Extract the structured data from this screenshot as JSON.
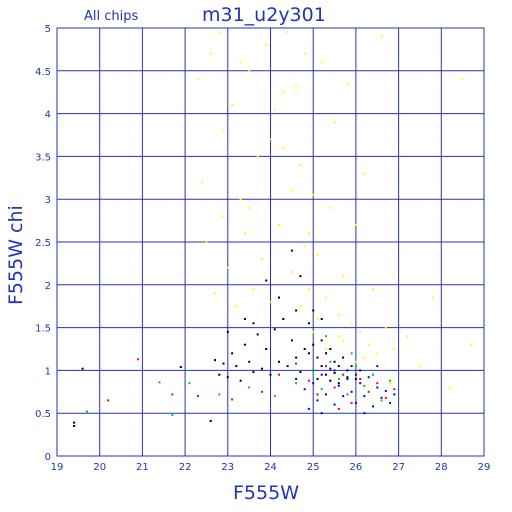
{
  "chart_data": {
    "type": "scatter",
    "title": "m31_u2y301",
    "subtitle": "All chips",
    "xlabel": "F555W",
    "ylabel": "F555W chi",
    "xlim": [
      19,
      29
    ],
    "ylim": [
      0,
      5
    ],
    "grid": true,
    "x_ticks": [
      "19",
      "20",
      "21",
      "22",
      "23",
      "24",
      "25",
      "26",
      "27",
      "28",
      "29"
    ],
    "y_ticks": [
      "0",
      "0.5",
      "1",
      "1.5",
      "2",
      "2.5",
      "3",
      "3.5",
      "4",
      "4.5",
      "5"
    ],
    "colors": {
      "axis": "#2233bb",
      "grid": "#2233bb",
      "text": "#2233bb",
      "series": [
        "#000000",
        "#ffff00",
        "#ff0000",
        "#00cc00",
        "#0000ff"
      ]
    },
    "series": [
      {
        "color": "#000000",
        "points": [
          [
            19.6,
            1.02
          ],
          [
            19.4,
            0.35
          ],
          [
            19.4,
            0.39
          ],
          [
            21.9,
            1.04
          ],
          [
            22.6,
            0.41
          ],
          [
            22.7,
            1.12
          ],
          [
            22.9,
            1.08
          ],
          [
            23.0,
            0.92
          ],
          [
            23.1,
            1.2
          ],
          [
            23.2,
            1.05
          ],
          [
            23.3,
            0.88
          ],
          [
            23.4,
            1.3
          ],
          [
            23.5,
            1.1
          ],
          [
            23.6,
            0.98
          ],
          [
            23.7,
            1.42
          ],
          [
            23.8,
            1.02
          ],
          [
            23.9,
            1.25
          ],
          [
            24.0,
            0.95
          ],
          [
            24.1,
            1.48
          ],
          [
            24.2,
            1.1
          ],
          [
            24.3,
            1.6
          ],
          [
            24.4,
            1.05
          ],
          [
            24.5,
            2.4
          ],
          [
            24.5,
            1.35
          ],
          [
            24.6,
            1.15
          ],
          [
            24.7,
            2.1
          ],
          [
            24.7,
            0.98
          ],
          [
            24.8,
            1.25
          ],
          [
            24.9,
            1.55
          ],
          [
            25.0,
            1.0
          ],
          [
            25.0,
            1.7
          ],
          [
            25.1,
            1.15
          ],
          [
            25.1,
            0.9
          ],
          [
            25.2,
            1.35
          ],
          [
            25.2,
            1.05
          ],
          [
            25.3,
            0.95
          ],
          [
            25.3,
            1.2
          ],
          [
            25.4,
            1.02
          ],
          [
            25.4,
            0.88
          ],
          [
            25.5,
            1.1
          ],
          [
            25.5,
            0.97
          ],
          [
            25.6,
            1.05
          ],
          [
            25.6,
            0.85
          ],
          [
            25.7,
            1.15
          ],
          [
            25.8,
            0.92
          ],
          [
            25.9,
            1.05
          ],
          [
            26.0,
            0.9
          ],
          [
            26.1,
            1.0
          ],
          [
            23.4,
            1.6
          ],
          [
            23.6,
            1.55
          ],
          [
            22.8,
            0.95
          ],
          [
            23.0,
            1.45
          ],
          [
            23.9,
            2.05
          ],
          [
            24.2,
            1.85
          ],
          [
            24.6,
            1.7
          ],
          [
            24.9,
            1.2
          ],
          [
            25.0,
            1.3
          ],
          [
            25.2,
            1.6
          ],
          [
            25.4,
            1.25
          ],
          [
            25.8,
            1.0
          ]
        ]
      },
      {
        "color": "#ffff00",
        "points": [
          [
            22.3,
            4.4
          ],
          [
            22.4,
            3.2
          ],
          [
            22.5,
            2.5
          ],
          [
            22.6,
            4.7
          ],
          [
            22.7,
            1.9
          ],
          [
            22.8,
            4.95
          ],
          [
            22.9,
            3.8
          ],
          [
            23.0,
            2.2
          ],
          [
            23.1,
            4.1
          ],
          [
            23.2,
            1.75
          ],
          [
            23.3,
            3.0
          ],
          [
            23.4,
            2.6
          ],
          [
            23.5,
            4.5
          ],
          [
            23.6,
            1.95
          ],
          [
            23.7,
            3.5
          ],
          [
            23.8,
            2.3
          ],
          [
            23.9,
            4.8
          ],
          [
            24.0,
            1.8
          ],
          [
            24.1,
            4.05
          ],
          [
            24.2,
            2.7
          ],
          [
            24.3,
            3.6
          ],
          [
            24.4,
            4.95
          ],
          [
            24.5,
            3.1
          ],
          [
            24.5,
            2.15
          ],
          [
            24.6,
            4.3
          ],
          [
            24.7,
            3.4
          ],
          [
            24.8,
            2.45
          ],
          [
            24.8,
            4.7
          ],
          [
            24.9,
            1.95
          ],
          [
            25.0,
            3.05
          ],
          [
            25.1,
            2.35
          ],
          [
            25.2,
            4.6
          ],
          [
            25.3,
            1.85
          ],
          [
            25.4,
            2.9
          ],
          [
            25.5,
            3.9
          ],
          [
            25.6,
            1.65
          ],
          [
            25.7,
            2.1
          ],
          [
            25.8,
            4.35
          ],
          [
            25.9,
            1.55
          ],
          [
            26.0,
            2.7
          ],
          [
            26.1,
            1.45
          ],
          [
            26.2,
            3.3
          ],
          [
            26.3,
            1.3
          ],
          [
            26.4,
            1.95
          ],
          [
            26.5,
            1.2
          ],
          [
            26.6,
            4.9
          ],
          [
            26.7,
            1.5
          ],
          [
            26.9,
            1.25
          ],
          [
            27.2,
            1.4
          ],
          [
            27.5,
            1.05
          ],
          [
            27.8,
            1.85
          ],
          [
            28.2,
            0.8
          ],
          [
            28.5,
            4.4
          ],
          [
            28.7,
            1.3
          ],
          [
            25.0,
            1.45
          ],
          [
            25.3,
            1.25
          ],
          [
            25.7,
            1.35
          ],
          [
            26.0,
            1.1
          ],
          [
            26.4,
            0.95
          ],
          [
            26.8,
            0.85
          ],
          [
            23.5,
            2.9
          ],
          [
            24.0,
            3.7
          ],
          [
            24.3,
            4.25
          ],
          [
            24.7,
            1.75
          ],
          [
            25.1,
            1.6
          ],
          [
            25.6,
            1.4
          ],
          [
            26.2,
            1.15
          ],
          [
            22.9,
            2.8
          ],
          [
            23.3,
            4.6
          ],
          [
            24.9,
            2.6
          ]
        ]
      },
      {
        "color": "#ff0000",
        "points": [
          [
            20.2,
            0.65
          ],
          [
            20.9,
            1.13
          ],
          [
            21.7,
            0.72
          ],
          [
            22.3,
            0.7
          ],
          [
            23.1,
            0.66
          ],
          [
            23.8,
            0.75
          ],
          [
            24.2,
            0.95
          ],
          [
            24.6,
            1.08
          ],
          [
            24.9,
            0.88
          ],
          [
            25.1,
            0.72
          ],
          [
            25.3,
            1.05
          ],
          [
            25.5,
            0.8
          ],
          [
            25.7,
            0.95
          ],
          [
            25.9,
            0.62
          ],
          [
            26.1,
            0.9
          ],
          [
            26.3,
            0.75
          ],
          [
            26.5,
            0.85
          ],
          [
            26.7,
            0.68
          ],
          [
            26.9,
            0.78
          ],
          [
            25.6,
            0.55
          ]
        ]
      },
      {
        "color": "#00cc00",
        "points": [
          [
            19.7,
            0.52
          ],
          [
            21.4,
            0.86
          ],
          [
            21.7,
            0.48
          ],
          [
            22.1,
            0.85
          ],
          [
            22.8,
            0.72
          ],
          [
            23.5,
            0.8
          ],
          [
            24.1,
            0.7
          ],
          [
            24.6,
            0.85
          ],
          [
            25.0,
            1.0
          ],
          [
            25.2,
            0.78
          ],
          [
            25.4,
            1.1
          ],
          [
            25.6,
            0.9
          ],
          [
            25.8,
            0.72
          ],
          [
            26.0,
            1.05
          ],
          [
            26.2,
            0.82
          ],
          [
            26.4,
            0.95
          ],
          [
            26.6,
            0.65
          ],
          [
            26.8,
            0.88
          ],
          [
            25.3,
            1.4
          ],
          [
            25.9,
            1.2
          ]
        ]
      },
      {
        "color": "#0000ff",
        "points": [
          [
            24.6,
            0.9
          ],
          [
            24.8,
            0.78
          ],
          [
            25.0,
            0.85
          ],
          [
            25.1,
            0.65
          ],
          [
            25.2,
            0.95
          ],
          [
            25.3,
            0.72
          ],
          [
            25.4,
            0.88
          ],
          [
            25.5,
            0.6
          ],
          [
            25.6,
            0.82
          ],
          [
            25.7,
            0.7
          ],
          [
            25.8,
            0.9
          ],
          [
            25.9,
            0.75
          ],
          [
            26.0,
            0.62
          ],
          [
            26.1,
            0.85
          ],
          [
            26.2,
            0.7
          ],
          [
            26.3,
            0.92
          ],
          [
            26.4,
            0.58
          ],
          [
            26.5,
            0.8
          ],
          [
            26.6,
            0.68
          ],
          [
            26.7,
            0.76
          ],
          [
            26.8,
            0.62
          ],
          [
            26.9,
            0.72
          ],
          [
            25.5,
            1.0
          ],
          [
            26.0,
            0.95
          ],
          [
            26.5,
            1.05
          ],
          [
            24.9,
            0.55
          ],
          [
            25.2,
            0.5
          ],
          [
            26.2,
            0.5
          ]
        ]
      }
    ]
  }
}
